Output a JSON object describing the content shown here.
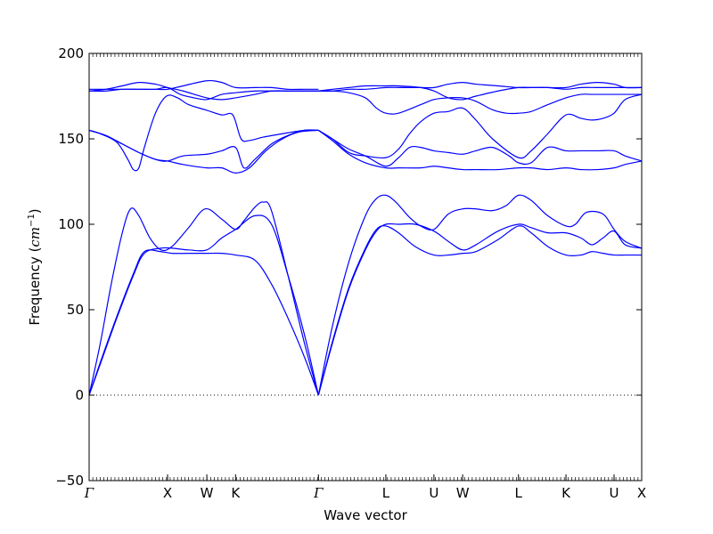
{
  "chart_data": {
    "type": "line",
    "title": "",
    "xlabel": "Wave vector",
    "ylabel": "Frequency (cm⁻¹)",
    "ylabel_parts": {
      "prefix": "Frequency (",
      "unit": "cm",
      "exp": "−1",
      "suffix": ")"
    },
    "ylim": [
      -50,
      200
    ],
    "xlim": [
      0,
      1
    ],
    "yticks": [
      -50,
      0,
      50,
      100,
      150,
      200
    ],
    "ytick_labels": [
      "−50",
      "0",
      "50",
      "100",
      "150",
      "200"
    ],
    "high_symmetry_points": [
      {
        "label": "Γ",
        "x": 0.0
      },
      {
        "label": "X",
        "x": 0.142
      },
      {
        "label": "W",
        "x": 0.213
      },
      {
        "label": "K",
        "x": 0.265
      },
      {
        "label": "Γ",
        "x": 0.415
      },
      {
        "label": "L",
        "x": 0.537
      },
      {
        "label": "U",
        "x": 0.624
      },
      {
        "label": "W",
        "x": 0.676
      },
      {
        "label": "L",
        "x": 0.777
      },
      {
        "label": "K",
        "x": 0.863
      },
      {
        "label": "U",
        "x": 0.95
      },
      {
        "label": "X",
        "x": 1.0
      }
    ],
    "zero_line": 0,
    "grid": false,
    "line_color": "#0000ff",
    "series": [
      {
        "x": [
          0,
          0.02,
          0.05,
          0.08,
          0.1,
          0.13,
          0.15,
          0.18,
          0.213,
          0.24,
          0.265,
          0.3,
          0.33,
          0.36,
          0.39,
          0.415
        ],
        "y": [
          0,
          18,
          45,
          70,
          83,
          86,
          86,
          85,
          85,
          92,
          97,
          105,
          100,
          70,
          35,
          0
        ]
      },
      {
        "x": [
          0,
          0.02,
          0.05,
          0.08,
          0.1,
          0.13,
          0.15,
          0.18,
          0.213,
          0.24,
          0.265,
          0.3,
          0.33,
          0.36,
          0.39,
          0.415
        ],
        "y": [
          0,
          19,
          46,
          71,
          84,
          84,
          83,
          83,
          83,
          83,
          82,
          79,
          65,
          45,
          22,
          0
        ]
      },
      {
        "x": [
          0,
          0.02,
          0.04,
          0.06,
          0.075,
          0.09,
          0.11,
          0.13,
          0.15,
          0.18,
          0.21,
          0.24,
          0.265,
          0.28,
          0.3,
          0.315,
          0.33,
          0.36,
          0.39,
          0.415
        ],
        "y": [
          0,
          30,
          65,
          95,
          109,
          105,
          92,
          85,
          87,
          98,
          109,
          103,
          97,
          102,
          110,
          113,
          108,
          70,
          30,
          0
        ]
      },
      {
        "x": [
          0.415,
          0.44,
          0.47,
          0.5,
          0.52,
          0.537,
          0.56,
          0.59,
          0.624,
          0.65,
          0.676,
          0.7,
          0.74,
          0.777,
          0.8,
          0.83,
          0.863,
          0.89,
          0.91,
          0.93,
          0.95,
          0.97,
          1.0
        ],
        "y": [
          0,
          30,
          62,
          85,
          96,
          100,
          100,
          100,
          96,
          90,
          85,
          88,
          96,
          100,
          98,
          95,
          95,
          92,
          88,
          92,
          96,
          88,
          86
        ]
      },
      {
        "x": [
          0.415,
          0.44,
          0.47,
          0.5,
          0.52,
          0.537,
          0.56,
          0.59,
          0.624,
          0.65,
          0.676,
          0.7,
          0.74,
          0.777,
          0.8,
          0.83,
          0.863,
          0.89,
          0.91,
          0.93,
          0.95,
          0.97,
          1.0
        ],
        "y": [
          0,
          31,
          63,
          86,
          97,
          99,
          95,
          87,
          82,
          82,
          83,
          84,
          91,
          99,
          95,
          87,
          82,
          82,
          84,
          83,
          82,
          82,
          82
        ]
      },
      {
        "x": [
          0.415,
          0.44,
          0.47,
          0.5,
          0.52,
          0.537,
          0.555,
          0.58,
          0.6,
          0.624,
          0.65,
          0.676,
          0.7,
          0.73,
          0.755,
          0.777,
          0.8,
          0.83,
          0.863,
          0.88,
          0.9,
          0.93,
          0.95,
          0.97,
          1.0
        ],
        "y": [
          0,
          40,
          78,
          105,
          115,
          117,
          113,
          104,
          99,
          97,
          106,
          109,
          109,
          108,
          111,
          117,
          114,
          105,
          99,
          100,
          107,
          106,
          97,
          90,
          86
        ]
      },
      {
        "x": [
          0,
          0.02,
          0.05,
          0.07,
          0.08,
          0.09,
          0.1,
          0.12,
          0.14,
          0.16,
          0.18,
          0.21,
          0.24,
          0.26,
          0.275,
          0.29,
          0.315,
          0.35,
          0.39,
          0.415
        ],
        "y": [
          155,
          153,
          148,
          138,
          132,
          133,
          145,
          165,
          175,
          174,
          170,
          167,
          164,
          164,
          150,
          149,
          151,
          153,
          155,
          155
        ]
      },
      {
        "x": [
          0,
          0.03,
          0.06,
          0.09,
          0.12,
          0.142,
          0.17,
          0.213,
          0.24,
          0.265,
          0.28,
          0.3,
          0.33,
          0.36,
          0.39,
          0.415
        ],
        "y": [
          155,
          152,
          147,
          142,
          138,
          137,
          140,
          141,
          143,
          145,
          133,
          138,
          147,
          152,
          155,
          155
        ]
      },
      {
        "x": [
          0,
          0.03,
          0.06,
          0.09,
          0.12,
          0.142,
          0.17,
          0.213,
          0.24,
          0.265,
          0.29,
          0.32,
          0.35,
          0.38,
          0.415
        ],
        "y": [
          155,
          152,
          147,
          142,
          138,
          137,
          135,
          133,
          133,
          130,
          133,
          143,
          150,
          154,
          155
        ]
      },
      {
        "x": [
          0,
          0.03,
          0.06,
          0.09,
          0.12,
          0.142,
          0.17,
          0.213,
          0.24,
          0.265,
          0.3,
          0.33,
          0.36,
          0.39,
          0.415
        ],
        "y": [
          178,
          179,
          181,
          183,
          182,
          180,
          178,
          174,
          173,
          174,
          176,
          178,
          178,
          178,
          178
        ]
      },
      {
        "x": [
          0,
          0.03,
          0.06,
          0.09,
          0.12,
          0.142,
          0.17,
          0.213,
          0.24,
          0.265,
          0.3,
          0.33,
          0.36,
          0.39,
          0.415
        ],
        "y": [
          179,
          179,
          179,
          179,
          179,
          179,
          181,
          184,
          183,
          180,
          180,
          180,
          179,
          179,
          179
        ]
      },
      {
        "x": [
          0,
          0.03,
          0.06,
          0.09,
          0.12,
          0.142,
          0.165,
          0.19,
          0.213,
          0.24,
          0.265,
          0.3,
          0.33,
          0.36,
          0.39,
          0.415
        ],
        "y": [
          178,
          178,
          179,
          179,
          179,
          180,
          176,
          174,
          173,
          176,
          177,
          178,
          178,
          178,
          178,
          178
        ]
      },
      {
        "x": [
          0.415,
          0.44,
          0.47,
          0.5,
          0.537,
          0.56,
          0.58,
          0.6,
          0.624,
          0.65,
          0.676,
          0.7,
          0.73,
          0.777,
          0.8,
          0.83,
          0.863,
          0.89,
          0.91,
          0.93,
          0.95,
          0.97,
          1.0
        ],
        "y": [
          155,
          150,
          142,
          140,
          139,
          144,
          153,
          160,
          165,
          166,
          168,
          161,
          150,
          139,
          143,
          153,
          164,
          162,
          161,
          162,
          165,
          173,
          176
        ]
      },
      {
        "x": [
          0.415,
          0.44,
          0.47,
          0.5,
          0.537,
          0.56,
          0.58,
          0.6,
          0.624,
          0.65,
          0.676,
          0.7,
          0.73,
          0.76,
          0.777,
          0.8,
          0.83,
          0.863,
          0.89,
          0.92,
          0.95,
          0.97,
          1.0
        ],
        "y": [
          155,
          150,
          144,
          140,
          134,
          139,
          145,
          145,
          143,
          142,
          141,
          143,
          145,
          140,
          136,
          136,
          145,
          143,
          143,
          143,
          143,
          140,
          137
        ]
      },
      {
        "x": [
          0.415,
          0.44,
          0.47,
          0.5,
          0.537,
          0.56,
          0.6,
          0.624,
          0.65,
          0.676,
          0.7,
          0.74,
          0.777,
          0.8,
          0.83,
          0.863,
          0.89,
          0.92,
          0.95,
          0.97,
          1.0
        ],
        "y": [
          155,
          149,
          141,
          136,
          133,
          133,
          133,
          134,
          133,
          132,
          132,
          132,
          133,
          133,
          132,
          133,
          132,
          132,
          133,
          135,
          137
        ]
      },
      {
        "x": [
          0.415,
          0.44,
          0.47,
          0.5,
          0.537,
          0.56,
          0.58,
          0.6,
          0.624,
          0.65,
          0.676,
          0.7,
          0.74,
          0.777,
          0.8,
          0.83,
          0.863,
          0.89,
          0.92,
          0.95,
          0.97,
          1.0
        ],
        "y": [
          178,
          178,
          179,
          179,
          180,
          180,
          180,
          180,
          180,
          182,
          183,
          182,
          181,
          180,
          180,
          180,
          180,
          182,
          183,
          182,
          180,
          180
        ]
      },
      {
        "x": [
          0.415,
          0.44,
          0.47,
          0.5,
          0.537,
          0.56,
          0.6,
          0.624,
          0.65,
          0.676,
          0.7,
          0.74,
          0.777,
          0.8,
          0.83,
          0.863,
          0.89,
          0.92,
          0.95,
          0.97,
          1.0
        ],
        "y": [
          178,
          179,
          180,
          181,
          181,
          181,
          180,
          178,
          174,
          173,
          175,
          178,
          180,
          180,
          180,
          179,
          180,
          180,
          180,
          180,
          180
        ]
      },
      {
        "x": [
          0.415,
          0.44,
          0.47,
          0.5,
          0.52,
          0.537,
          0.56,
          0.6,
          0.624,
          0.65,
          0.676,
          0.7,
          0.73,
          0.755,
          0.777,
          0.8,
          0.83,
          0.863,
          0.89,
          0.91,
          0.93,
          0.95,
          0.97,
          1.0
        ],
        "y": [
          178,
          178,
          177,
          174,
          168,
          165,
          165,
          170,
          173,
          174,
          174,
          172,
          167,
          165,
          165,
          166,
          170,
          174,
          176,
          176,
          176,
          176,
          176,
          176
        ]
      }
    ]
  }
}
